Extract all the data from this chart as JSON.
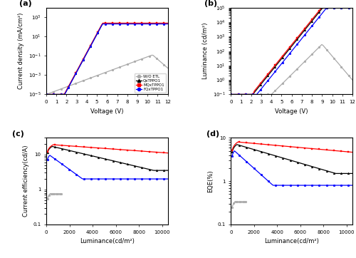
{
  "panel_labels": [
    "(a)",
    "(b)",
    "(c)",
    "(d)"
  ],
  "legend_labels": [
    "W/O ETL",
    "QxTPPO1",
    "MQxTPPO1",
    "FQxTPPO1"
  ],
  "colors": {
    "wo_etl": "#aaaaaa",
    "qx": "#000000",
    "mqx": "#ff0000",
    "fqx": "#0000ff"
  },
  "panel_a": {
    "xlabel": "Voltage (V)",
    "ylabel": "Current density (mA/cm²)",
    "xlim": [
      0,
      12
    ],
    "ylim": [
      1e-05,
      10000.0
    ],
    "xticks": [
      0,
      1,
      2,
      3,
      4,
      5,
      6,
      7,
      8,
      9,
      10,
      11,
      12
    ]
  },
  "panel_b": {
    "xlabel": "Voltage (V)",
    "ylabel": "Luminance (cd/m²)",
    "xlim": [
      0,
      12
    ],
    "ylim": [
      0.1,
      100000.0
    ],
    "xticks": [
      0,
      1,
      2,
      3,
      4,
      5,
      6,
      7,
      8,
      9,
      10,
      11,
      12
    ]
  },
  "panel_c": {
    "xlabel": "Luminance(cd/m²)",
    "ylabel": "Current efficiency(cd/A)",
    "xlim": [
      0,
      10500
    ],
    "ylim": [
      0.1,
      30
    ],
    "xticks": [
      0,
      2000,
      4000,
      6000,
      8000,
      10000
    ]
  },
  "panel_d": {
    "xlabel": "Luminance(cd/m²)",
    "ylabel": "EQE(%)",
    "xlim": [
      0,
      10500
    ],
    "ylim": [
      0.1,
      10
    ],
    "xticks": [
      0,
      2000,
      4000,
      6000,
      8000,
      10000
    ]
  }
}
